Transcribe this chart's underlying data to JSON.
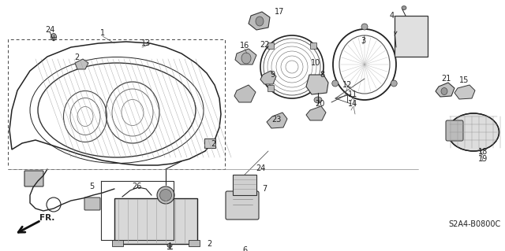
{
  "bg_color": "#ffffff",
  "diagram_code": "S2A4-B0800C",
  "fr_label": "FR.",
  "text_color": "#222222",
  "fig_w": 6.4,
  "fig_h": 3.19,
  "dpi": 100
}
